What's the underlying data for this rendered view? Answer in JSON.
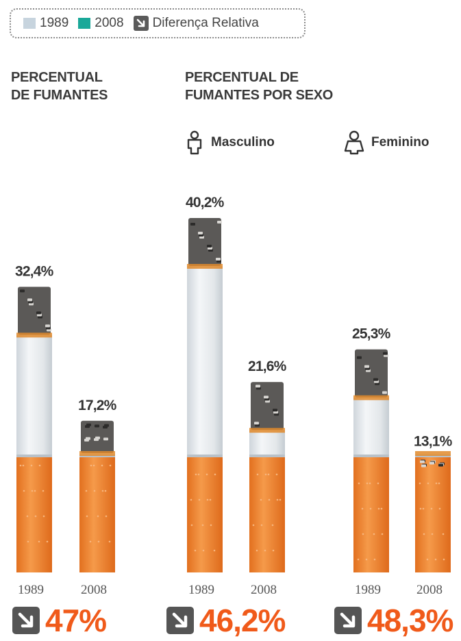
{
  "legend": {
    "items": [
      {
        "label": "1989",
        "color": "#c7d4de"
      },
      {
        "label": "2008",
        "color": "#1aa899"
      },
      {
        "label": "Diferença Relativa",
        "icon": "down-right-arrow-icon"
      }
    ]
  },
  "headings": {
    "overall": [
      "PERCENTUAL",
      "DE FUMANTES"
    ],
    "by_sex": [
      "PERCENTUAL DE",
      "FUMANTES POR SEXO"
    ]
  },
  "sex_labels": {
    "male": "Masculino",
    "female": "Feminino"
  },
  "colors": {
    "filter": "#f0852e",
    "paper": "#e9ecef",
    "ash": "#4a4a4a",
    "accent": "#f05a1a"
  },
  "chart_data": [
    {
      "type": "bar",
      "group": "PERCENTUAL DE FUMANTES",
      "categories": [
        "1989",
        "2008"
      ],
      "values": [
        32.4,
        17.2
      ],
      "value_labels": [
        "32,4%",
        "17,2%"
      ],
      "relative_difference": "47%"
    },
    {
      "type": "bar",
      "group": "Masculino",
      "categories": [
        "1989",
        "2008"
      ],
      "values": [
        40.2,
        21.6
      ],
      "value_labels": [
        "40,2%",
        "21,6%"
      ],
      "relative_difference": "46,2%"
    },
    {
      "type": "bar",
      "group": "Feminino",
      "categories": [
        "1989",
        "2008"
      ],
      "values": [
        25.3,
        13.1
      ],
      "value_labels": [
        "25,3%",
        "13,1%"
      ],
      "relative_difference": "48,3%"
    }
  ]
}
